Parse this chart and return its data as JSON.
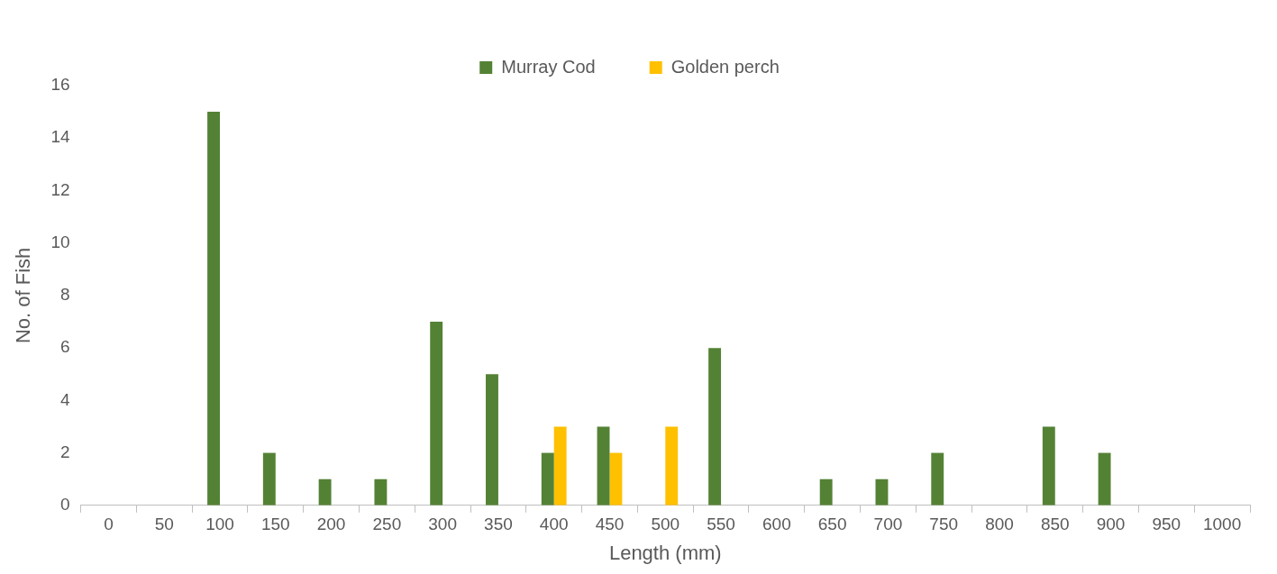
{
  "chart_data": {
    "type": "bar",
    "xlabel": "Length (mm)",
    "ylabel": "No. of Fish",
    "categories": [
      "0",
      "50",
      "100",
      "150",
      "200",
      "250",
      "300",
      "350",
      "400",
      "450",
      "500",
      "550",
      "600",
      "650",
      "700",
      "750",
      "800",
      "850",
      "900",
      "950",
      "1000"
    ],
    "series": [
      {
        "name": "Murray Cod",
        "color": "#548235",
        "values": [
          0,
          0,
          15,
          2,
          1,
          1,
          7,
          5,
          2,
          3,
          0,
          6,
          0,
          1,
          1,
          2,
          0,
          3,
          2,
          0,
          0
        ]
      },
      {
        "name": "Golden perch",
        "color": "#ffc000",
        "values": [
          0,
          0,
          0,
          0,
          0,
          0,
          0,
          0,
          3,
          2,
          3,
          0,
          0,
          0,
          0,
          0,
          0,
          0,
          0,
          0,
          0
        ]
      }
    ],
    "ylim": [
      0,
      16
    ],
    "yticks": [
      0,
      2,
      4,
      6,
      8,
      10,
      12,
      14,
      16
    ],
    "grid": false,
    "legend": "top"
  }
}
